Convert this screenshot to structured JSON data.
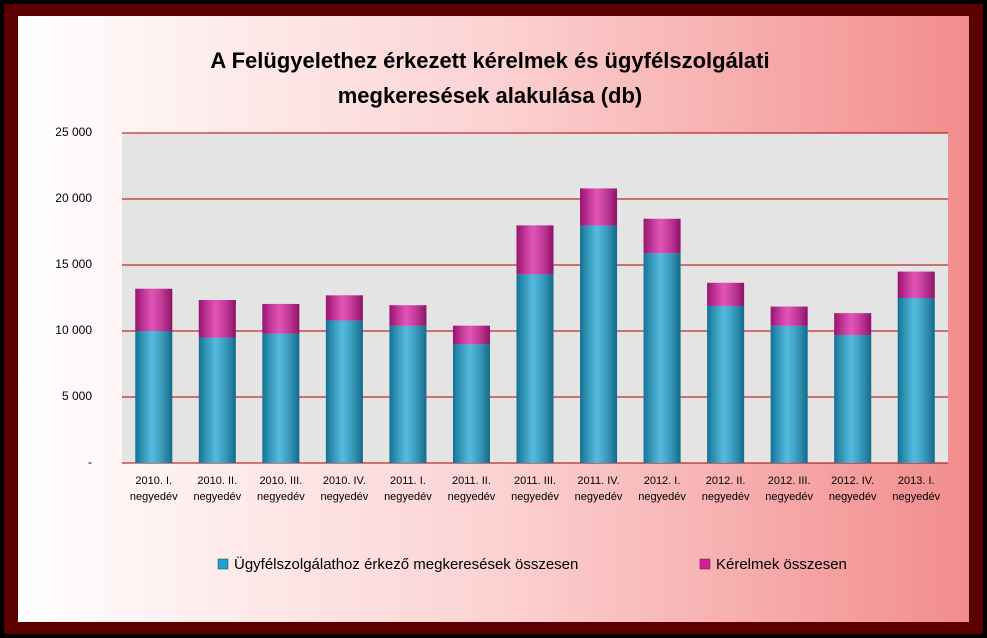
{
  "chart_data": {
    "type": "stacked_bar",
    "title": "A Felügyelethez érkezett kérelmek és ügyfélszolgálati\nmegkeresések alakulása (db)",
    "categories": [
      "2010. I.\nnegyedév",
      "2010. II.\nnegyedév",
      "2010. III.\nnegyedév",
      "2010. IV.\nnegyedév",
      "2011. I.\nnegyedév",
      "2011. II.\nnegyedév",
      "2011. III.\nnegyedév",
      "2011. IV.\nnegyedév",
      "2012. I.\nnegyedév",
      "2012. II.\nnegyedév",
      "2012. III.\nnegyedév",
      "2012. IV.\nnegyedév",
      "2013. I.\nnegyedév"
    ],
    "series": [
      {
        "name": "Ügyfélszolgálathoz érkező megkeresések összesen",
        "color": "#1aa3d3",
        "values": [
          10000,
          9500,
          9800,
          10800,
          10400,
          9000,
          14300,
          18000,
          15900,
          11900,
          10400,
          9700,
          12500
        ]
      },
      {
        "name": "Kérelmek összesen",
        "color": "#d81a9e",
        "values": [
          3200,
          2850,
          2250,
          1900,
          1550,
          1400,
          3700,
          2800,
          2600,
          1750,
          1450,
          1650,
          2000
        ]
      }
    ],
    "ylim": [
      0,
      25000
    ],
    "yticks": [
      {
        "value": 0,
        "label": "-"
      },
      {
        "value": 5000,
        "label": "5 000"
      },
      {
        "value": 10000,
        "label": "10 000"
      },
      {
        "value": 15000,
        "label": "15 000"
      },
      {
        "value": 20000,
        "label": "20 000"
      },
      {
        "value": 25000,
        "label": "25 000"
      }
    ],
    "grid": true,
    "legend": "bottom"
  }
}
